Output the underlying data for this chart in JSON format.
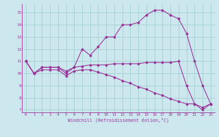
{
  "xlabel": "Windchill (Refroidissement éolien,°C)",
  "bg_color": "#cce8ee",
  "line_color": "#993399",
  "grid_color": "#99cccc",
  "xlim": [
    -0.5,
    23.5
  ],
  "ylim": [
    6.8,
    15.7
  ],
  "xticks": [
    0,
    1,
    2,
    3,
    4,
    5,
    6,
    7,
    8,
    9,
    10,
    11,
    12,
    13,
    14,
    15,
    16,
    17,
    18,
    19,
    20,
    21,
    22,
    23
  ],
  "yticks": [
    7,
    8,
    9,
    10,
    11,
    12,
    13,
    14,
    15
  ],
  "series1_x": [
    0,
    1,
    2,
    3,
    4,
    5,
    6,
    7,
    8,
    9,
    10,
    11,
    12,
    13,
    14,
    15,
    16,
    17,
    18,
    19,
    20,
    21,
    22,
    23
  ],
  "series1_y": [
    11.0,
    10.0,
    10.5,
    10.5,
    10.5,
    10.0,
    10.5,
    12.0,
    11.5,
    12.2,
    13.0,
    13.0,
    14.0,
    14.0,
    14.2,
    14.8,
    15.2,
    15.2,
    14.8,
    14.5,
    13.3,
    11.0,
    9.0,
    7.5
  ],
  "series2_x": [
    0,
    1,
    2,
    3,
    4,
    5,
    6,
    7,
    8,
    9,
    10,
    11,
    12,
    13,
    14,
    15,
    16,
    17,
    18,
    19,
    20,
    21,
    22,
    23
  ],
  "series2_y": [
    11.0,
    10.0,
    10.5,
    10.5,
    10.5,
    10.2,
    10.5,
    10.6,
    10.7,
    10.7,
    10.7,
    10.8,
    10.8,
    10.8,
    10.8,
    10.9,
    10.9,
    10.9,
    10.9,
    11.0,
    9.0,
    7.5,
    7.2,
    7.5
  ],
  "series3_x": [
    0,
    1,
    2,
    3,
    4,
    5,
    6,
    7,
    8,
    9,
    10,
    11,
    12,
    13,
    14,
    15,
    16,
    17,
    18,
    19,
    20,
    21,
    22,
    23
  ],
  "series3_y": [
    11.0,
    10.0,
    10.3,
    10.3,
    10.3,
    9.8,
    10.2,
    10.3,
    10.3,
    10.1,
    9.9,
    9.7,
    9.4,
    9.2,
    8.9,
    8.7,
    8.4,
    8.2,
    7.9,
    7.7,
    7.5,
    7.5,
    7.0,
    7.5
  ]
}
